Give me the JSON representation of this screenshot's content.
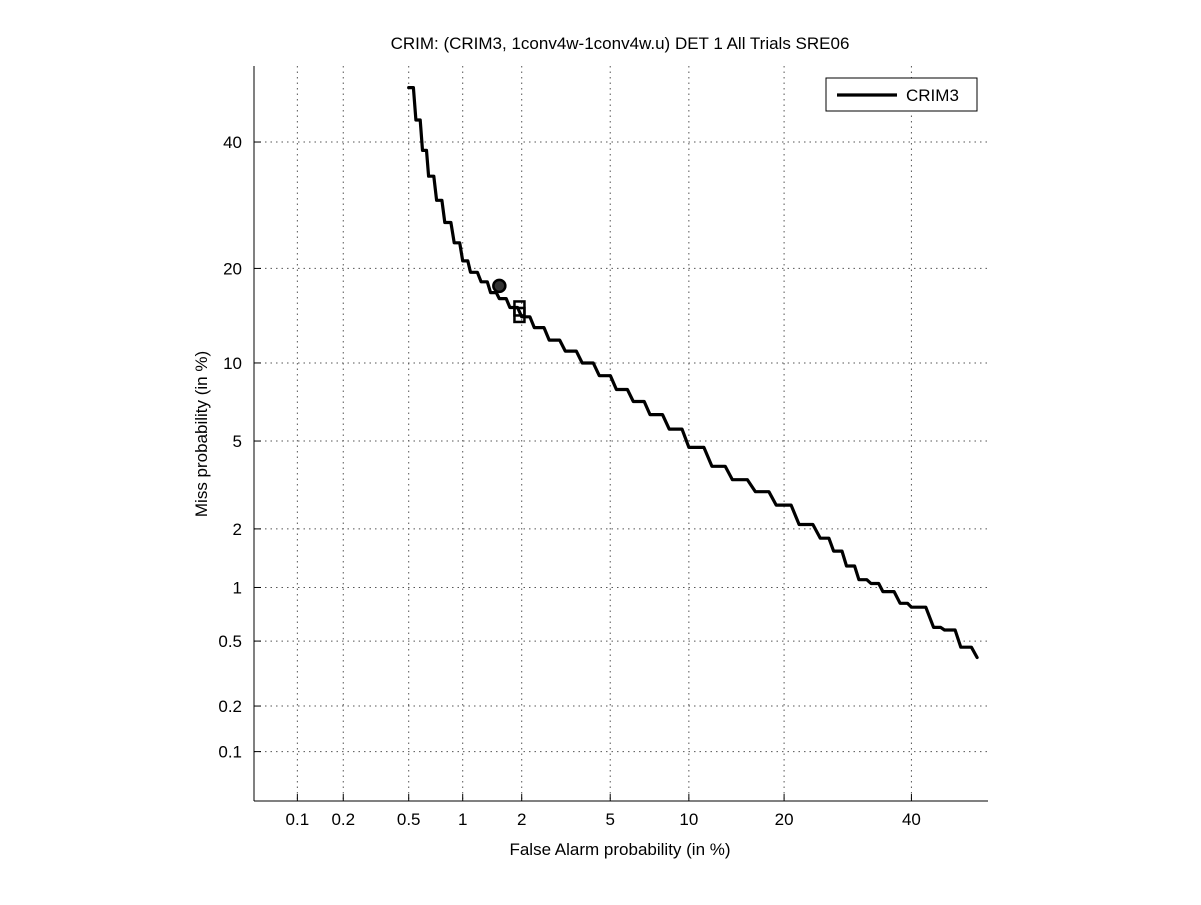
{
  "chart_data": {
    "type": "line",
    "title": "CRIM: (CRIM3, 1conv4w-1conv4w.u) DET 1 All Trials SRE06",
    "xlabel": "False Alarm probability (in %)",
    "ylabel": "Miss probability (in %)",
    "x_scale": "probit",
    "y_scale": "probit",
    "xlim": [
      0.05,
      54
    ],
    "ylim": [
      0.045,
      54
    ],
    "x_ticks": [
      0.1,
      0.2,
      0.5,
      1,
      2,
      5,
      10,
      20,
      40
    ],
    "x_tick_labels": [
      "0.1",
      "0.2",
      "0.5",
      "1",
      "2",
      "5",
      "10",
      "20",
      "40"
    ],
    "y_ticks": [
      0.1,
      0.2,
      0.5,
      1,
      2,
      5,
      10,
      20,
      40
    ],
    "y_tick_labels": [
      "0.1",
      "0.2",
      "0.5",
      "1",
      "2",
      "5",
      "10",
      "20",
      "40"
    ],
    "grid": true,
    "legend_position": "top-right",
    "series": [
      {
        "name": "CRIM3",
        "color": "#000000",
        "x": [
          0.5,
          0.55,
          0.6,
          0.65,
          0.72,
          0.8,
          0.9,
          1.0,
          1.1,
          1.25,
          1.4,
          1.55,
          1.75,
          2.0,
          2.3,
          2.7,
          3.2,
          3.8,
          4.5,
          5.3,
          6.2,
          7.2,
          8.5,
          10,
          12,
          14,
          16.5,
          19,
          22,
          25,
          27,
          29,
          31,
          33,
          35,
          38,
          40,
          44,
          46,
          49,
          52
        ],
        "y": [
          50,
          44,
          38.5,
          34,
          30,
          26.5,
          23.5,
          21,
          19.5,
          18.3,
          17,
          16.3,
          15.3,
          14.3,
          13.2,
          12,
          11,
          10,
          9,
          8,
          7.2,
          6.4,
          5.6,
          4.7,
          3.9,
          3.4,
          3.0,
          2.6,
          2.1,
          1.8,
          1.55,
          1.3,
          1.1,
          1.05,
          0.95,
          0.82,
          0.78,
          0.6,
          0.58,
          0.46,
          0.4
        ]
      }
    ],
    "markers": [
      {
        "shape": "circle",
        "x": 1.55,
        "y": 17.8
      },
      {
        "shape": "square",
        "x": 1.95,
        "y": 15.2
      },
      {
        "shape": "square",
        "x": 1.95,
        "y": 14.5
      }
    ]
  }
}
